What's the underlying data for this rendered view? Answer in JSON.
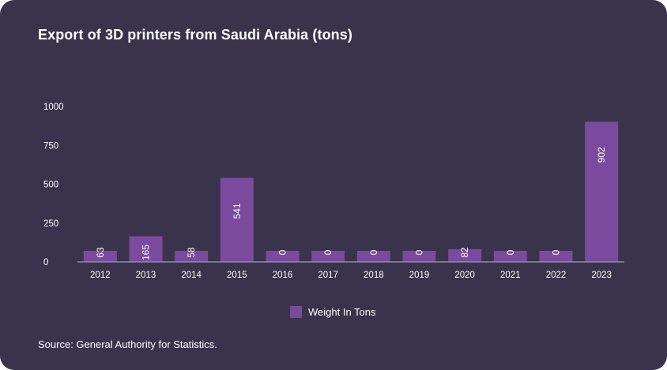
{
  "chart_data": {
    "type": "bar",
    "title": "Export of 3D printers from Saudi Arabia (tons)",
    "categories": [
      "2012",
      "2013",
      "2014",
      "2015",
      "2016",
      "2017",
      "2018",
      "2019",
      "2020",
      "2021",
      "2022",
      "2023"
    ],
    "series": [
      {
        "name": "Weight In Tons",
        "values": [
          63,
          165,
          58,
          541,
          0,
          0,
          0,
          0,
          82,
          0,
          0,
          902
        ]
      }
    ],
    "yticks": [
      0,
      250,
      500,
      750,
      1000
    ],
    "ylim": [
      0,
      1000
    ],
    "xlabel": "",
    "ylabel": "",
    "grid": false,
    "legend_position": "bottom-center",
    "bar_color": "#7b4a9f",
    "axis_color": "#8e89a3"
  },
  "source_text": "Source: General Authority for Statistics.",
  "colors": {
    "background": "#39344b",
    "text": "#ffffff"
  }
}
